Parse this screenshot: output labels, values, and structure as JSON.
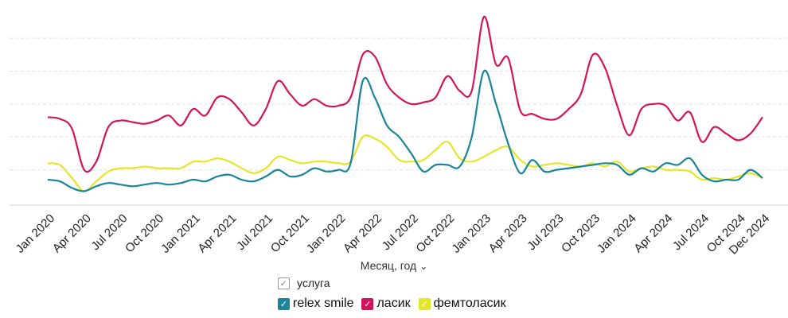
{
  "chart_data": {
    "type": "line",
    "x": [
      "Jan 2020",
      "Feb 2020",
      "Mar 2020",
      "Apr 2020",
      "May 2020",
      "Jun 2020",
      "Jul 2020",
      "Aug 2020",
      "Sep 2020",
      "Oct 2020",
      "Nov 2020",
      "Dec 2020",
      "Jan 2021",
      "Feb 2021",
      "Mar 2021",
      "Apr 2021",
      "May 2021",
      "Jun 2021",
      "Jul 2021",
      "Aug 2021",
      "Sep 2021",
      "Oct 2021",
      "Nov 2021",
      "Dec 2021",
      "Jan 2022",
      "Feb 2022",
      "Mar 2022",
      "Apr 2022",
      "May 2022",
      "Jun 2022",
      "Jul 2022",
      "Aug 2022",
      "Sep 2022",
      "Oct 2022",
      "Nov 2022",
      "Dec 2022",
      "Jan 2023",
      "Feb 2023",
      "Mar 2023",
      "Apr 2023",
      "May 2023",
      "Jun 2023",
      "Jul 2023",
      "Aug 2023",
      "Sep 2023",
      "Oct 2023",
      "Nov 2023",
      "Dec 2023",
      "Jan 2024",
      "Feb 2024",
      "Mar 2024",
      "Apr 2024",
      "May 2024",
      "Jun 2024",
      "Jul 2024",
      "Aug 2024",
      "Sep 2024",
      "Oct 2024",
      "Nov 2024",
      "Dec 2024"
    ],
    "tick_labels": [
      "Jan 2020",
      "Apr 2020",
      "Jul 2020",
      "Oct 2020",
      "Jan 2021",
      "Apr 2021",
      "Jul 2021",
      "Oct 2021",
      "Jan 2022",
      "Apr 2022",
      "Jul 2022",
      "Oct 2022",
      "Jan 2023",
      "Apr 2023",
      "Jul 2023",
      "Oct 2023",
      "Jan 2024",
      "Apr 2024",
      "Jul 2024",
      "Oct 2024",
      "Dec 2024"
    ],
    "tick_indices": [
      0,
      3,
      6,
      9,
      12,
      15,
      18,
      21,
      24,
      27,
      30,
      33,
      36,
      39,
      42,
      45,
      48,
      51,
      54,
      57,
      59
    ],
    "series": [
      {
        "name": "relex smile",
        "color": "#1a8599",
        "values": [
          0.7,
          0.65,
          0.45,
          0.35,
          0.5,
          0.6,
          0.55,
          0.5,
          0.55,
          0.6,
          0.55,
          0.6,
          0.7,
          0.65,
          0.8,
          0.85,
          0.7,
          0.65,
          0.8,
          1.0,
          0.8,
          0.85,
          1.05,
          0.95,
          1.0,
          1.2,
          3.7,
          3.2,
          2.35,
          2.0,
          1.5,
          0.95,
          1.15,
          1.15,
          1.1,
          2.0,
          4.0,
          3.0,
          1.8,
          0.9,
          1.3,
          0.95,
          1.0,
          1.05,
          1.1,
          1.15,
          1.2,
          1.15,
          0.85,
          1.05,
          0.95,
          1.2,
          1.15,
          1.35,
          0.85,
          0.65,
          0.7,
          0.7,
          1.0,
          0.75
        ]
      },
      {
        "name": "ласик",
        "color": "#d4145a",
        "values": [
          2.6,
          2.55,
          2.25,
          1.0,
          1.25,
          2.3,
          2.5,
          2.45,
          2.4,
          2.5,
          2.65,
          2.35,
          2.85,
          2.65,
          3.2,
          3.15,
          2.75,
          2.35,
          2.85,
          3.7,
          3.3,
          2.95,
          3.15,
          2.95,
          2.95,
          3.2,
          4.5,
          4.45,
          3.6,
          3.2,
          3.0,
          3.05,
          3.2,
          3.85,
          3.4,
          3.4,
          5.65,
          4.2,
          4.4,
          2.8,
          2.7,
          2.55,
          2.55,
          2.85,
          3.3,
          4.5,
          4.1,
          2.95,
          2.05,
          2.85,
          3.0,
          2.95,
          2.5,
          2.75,
          1.85,
          2.3,
          2.1,
          1.9,
          2.1,
          2.6
        ]
      },
      {
        "name": "фемтоласик",
        "color": "#e5e52a",
        "values": [
          1.2,
          1.15,
          0.75,
          0.35,
          0.65,
          0.95,
          1.05,
          1.05,
          1.1,
          1.05,
          1.05,
          1.05,
          1.25,
          1.25,
          1.35,
          1.25,
          1.05,
          0.9,
          1.05,
          1.4,
          1.3,
          1.2,
          1.25,
          1.25,
          1.2,
          1.25,
          2.0,
          1.95,
          1.7,
          1.3,
          1.25,
          1.3,
          1.6,
          1.85,
          1.35,
          1.25,
          1.4,
          1.6,
          1.7,
          1.3,
          1.1,
          1.15,
          1.2,
          1.15,
          1.1,
          1.2,
          1.1,
          1.25,
          0.95,
          1.05,
          1.1,
          1.0,
          1.0,
          0.95,
          0.7,
          0.75,
          0.7,
          0.8,
          0.9,
          0.75
        ]
      }
    ],
    "ylim": [
      0,
      5.8
    ],
    "grid": true,
    "xlabel": "Месяц, год",
    "legend_title": "услуга",
    "legend_position": "bottom"
  }
}
